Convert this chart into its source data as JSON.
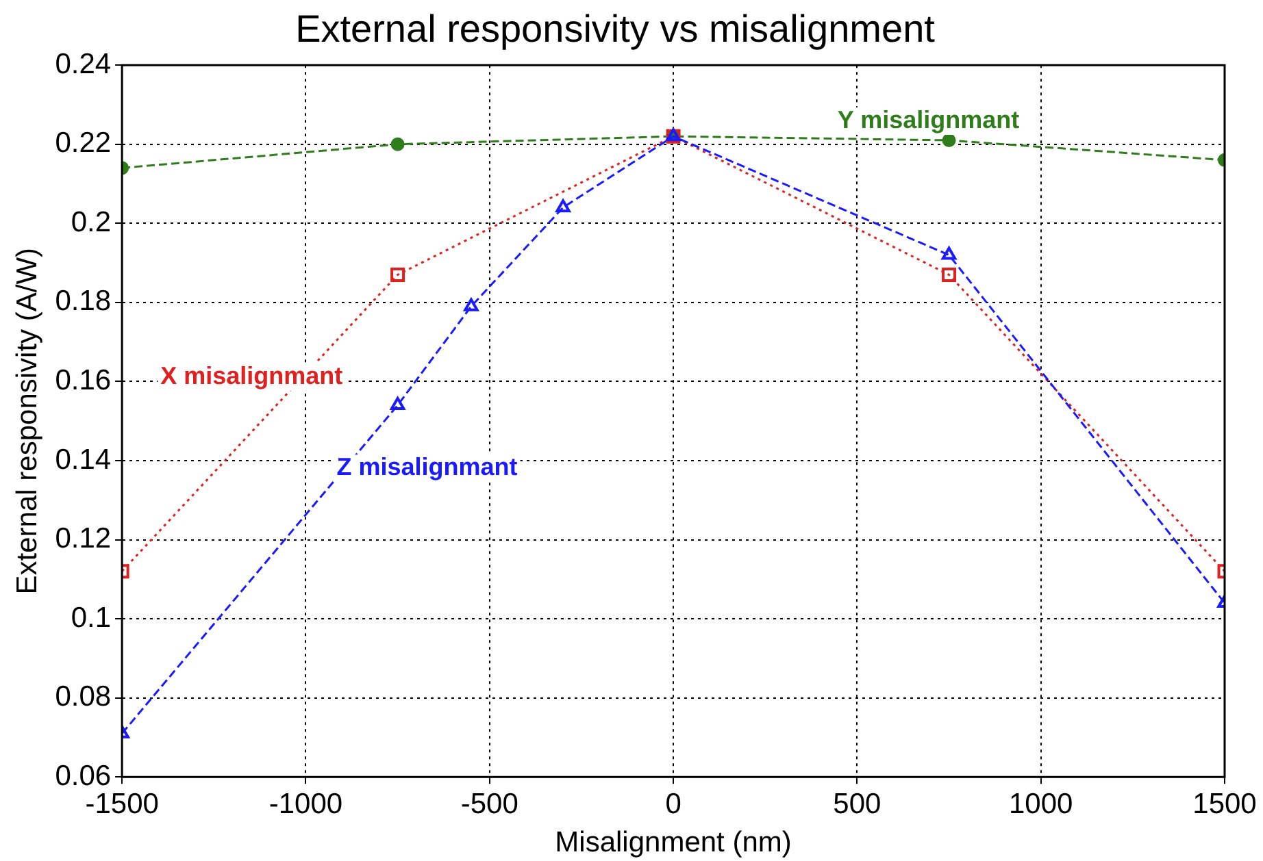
{
  "chart_data": {
    "type": "line",
    "title": "External responsivity vs misalignment",
    "xlabel": "Misalignment (nm)",
    "ylabel": "External responsivity (A/W)",
    "xlim": [
      -1500,
      1500
    ],
    "xticks": [
      -1500,
      -1000,
      -500,
      0,
      500,
      1000,
      1500
    ],
    "ylim": [
      0.06,
      0.24
    ],
    "yticks": [
      0.06,
      0.08,
      0.1,
      0.12,
      0.14,
      0.16,
      0.18,
      0.2,
      0.22,
      0.24
    ],
    "grid": true,
    "legend": false,
    "series": [
      {
        "name": "Y misalignmant",
        "color": "#2e7d1a",
        "marker": "circle",
        "line_style": "dashed",
        "x": [
          -1500,
          -750,
          0,
          750,
          1500
        ],
        "values": [
          0.214,
          0.22,
          0.222,
          0.221,
          0.216
        ]
      },
      {
        "name": "X misalignmant",
        "color": "#e0201e",
        "marker": "square",
        "line_style": "dotted",
        "x": [
          -1500,
          -750,
          0,
          750,
          1500
        ],
        "values": [
          0.112,
          0.187,
          0.222,
          0.187,
          0.112
        ]
      },
      {
        "name": "Z misalignmant",
        "color": "#1a1aff",
        "marker": "triangle",
        "line_style": "dashed",
        "x": [
          -1500,
          -750,
          -550,
          -300,
          0,
          750,
          1500
        ],
        "values": [
          0.071,
          0.154,
          0.179,
          0.204,
          0.222,
          0.192,
          0.104
        ]
      }
    ]
  }
}
